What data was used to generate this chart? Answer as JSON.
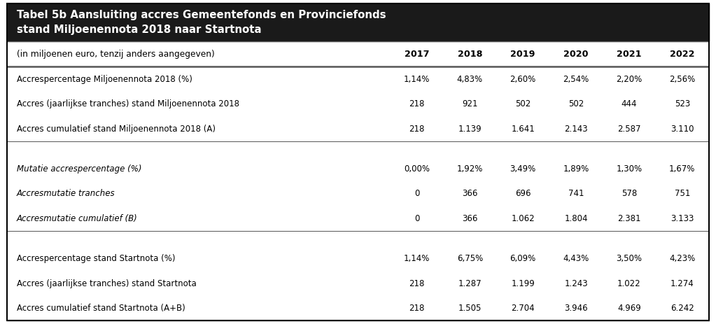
{
  "title_line1": "Tabel 5b Aansluiting accres Gemeentefonds en Provinciefonds",
  "title_line2": "stand Miljoenennota 2018 naar Startnota",
  "header_bg": "#1a1a1a",
  "header_text_color": "#ffffff",
  "col_header": "(in miljoenen euro, tenzij anders aangegeven)",
  "years": [
    "2017",
    "2018",
    "2019",
    "2020",
    "2021",
    "2022"
  ],
  "rows": [
    {
      "label": "Accrespercentage Miljoenennota 2018 (%)",
      "values": [
        "1,14%",
        "4,83%",
        "2,60%",
        "2,54%",
        "2,20%",
        "2,56%"
      ],
      "italic": false,
      "group": 1
    },
    {
      "label": "Accres (jaarlijkse tranches) stand Miljoenennota 2018",
      "values": [
        "218",
        "921",
        "502",
        "502",
        "444",
        "523"
      ],
      "italic": false,
      "group": 1
    },
    {
      "label": "Accres cumulatief stand Miljoenennota 2018 (A)",
      "values": [
        "218",
        "1.139",
        "1.641",
        "2.143",
        "2.587",
        "3.110"
      ],
      "italic": false,
      "group": 1
    },
    {
      "label": "Mutatie accrespercentage (%)",
      "values": [
        "0,00%",
        "1,92%",
        "3,49%",
        "1,89%",
        "1,30%",
        "1,67%"
      ],
      "italic": true,
      "group": 2
    },
    {
      "label": "Accresmutatie tranches",
      "values": [
        "0",
        "366",
        "696",
        "741",
        "578",
        "751"
      ],
      "italic": true,
      "group": 2
    },
    {
      "label": "Accresmutatie cumulatief (B)",
      "values": [
        "0",
        "366",
        "1.062",
        "1.804",
        "2.381",
        "3.133"
      ],
      "italic": true,
      "group": 2
    },
    {
      "label": "Accrespercentage stand Startnota (%)",
      "values": [
        "1,14%",
        "6,75%",
        "6,09%",
        "4,43%",
        "3,50%",
        "4,23%"
      ],
      "italic": false,
      "group": 3
    },
    {
      "label": "Accres (jaarlijkse tranches) stand Startnota",
      "values": [
        "218",
        "1.287",
        "1.199",
        "1.243",
        "1.022",
        "1.274"
      ],
      "italic": false,
      "group": 3
    },
    {
      "label": "Accres cumulatief stand Startnota (A+B)",
      "values": [
        "218",
        "1.505",
        "2.704",
        "3.946",
        "4.969",
        "6.242"
      ],
      "italic": false,
      "group": 3
    }
  ],
  "bg_color": "#ffffff",
  "table_border_color": "#000000",
  "line_color": "#555555",
  "text_color": "#000000",
  "fig_width": 10.23,
  "fig_height": 4.63
}
